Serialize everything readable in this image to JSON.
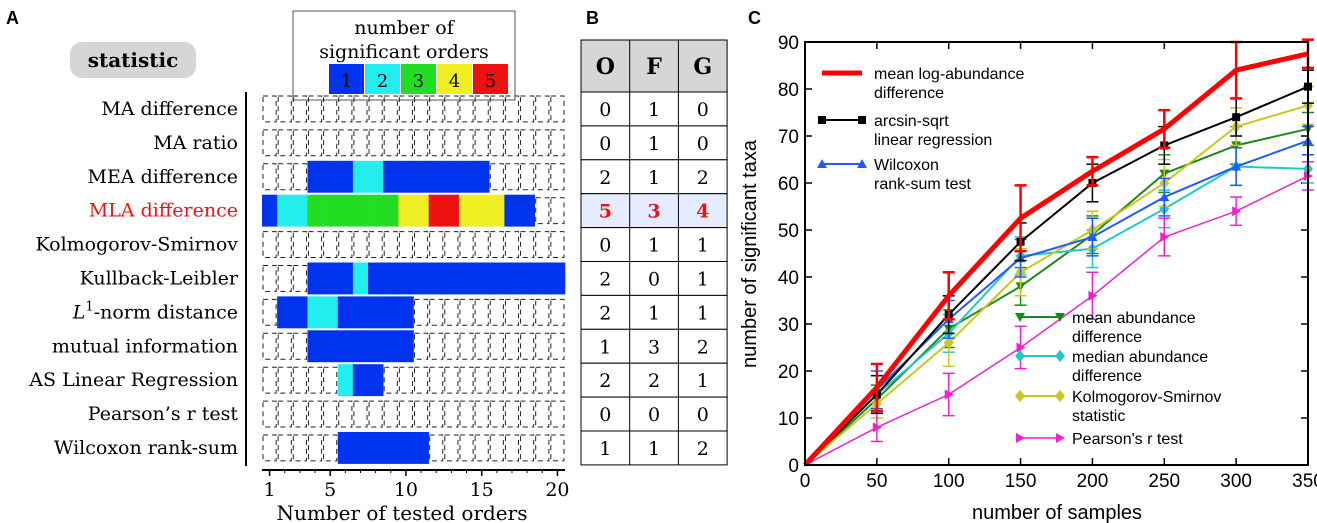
{
  "panel_labels": {
    "a": "A",
    "b": "B",
    "c": "C"
  },
  "colors": {
    "level1": "#0033ee",
    "level2": "#22eeee",
    "level3": "#22dd22",
    "level4": "#eeee22",
    "level5": "#ee1111",
    "highlight_text": "#ee1111",
    "highlight_row": "#e6ecff",
    "mla": "#ff0000",
    "ascsin": "#000000",
    "wilcoxon": "#1f5cff",
    "mean_abund": "#1a8a1a",
    "median_abund": "#22c8c8",
    "ks": "#c8c820",
    "pearson": "#ee22cc"
  },
  "panel_a": {
    "statistic_label": "statistic",
    "legend_title_1": "number of",
    "legend_title_2": "significant orders",
    "legend_levels": [
      "1",
      "2",
      "3",
      "4",
      "5"
    ],
    "rows": [
      {
        "label": "MA difference",
        "cells": []
      },
      {
        "label": "MA ratio",
        "cells": []
      },
      {
        "label": "MEA difference",
        "cells": [
          0,
          0,
          0,
          1,
          1,
          1,
          2,
          2,
          1,
          1,
          1,
          1,
          1,
          1,
          1,
          0,
          0,
          0,
          0,
          0
        ]
      },
      {
        "label": "MLA difference",
        "highlight": true,
        "cells": [
          1,
          2,
          2,
          3,
          3,
          3,
          3,
          3,
          3,
          4,
          4,
          5,
          5,
          4,
          4,
          4,
          1,
          1,
          0,
          0
        ]
      },
      {
        "label": "Kolmogorov-Smirnov",
        "cells": []
      },
      {
        "label": "Kullback-Leibler",
        "cells": [
          0,
          0,
          0,
          1,
          1,
          1,
          2,
          1,
          1,
          1,
          1,
          1,
          1,
          1,
          1,
          1,
          1,
          1,
          1,
          1
        ]
      },
      {
        "label_prefix": "L",
        "label_sup": "1",
        "label": "-norm distance",
        "cells": [
          0,
          1,
          1,
          2,
          2,
          1,
          1,
          1,
          1,
          1,
          0,
          0,
          0,
          0,
          0,
          0,
          0,
          0,
          0,
          0
        ]
      },
      {
        "label": "mutual information",
        "cells": [
          0,
          0,
          0,
          1,
          1,
          1,
          1,
          1,
          1,
          1,
          0,
          0,
          0,
          0,
          0,
          0,
          0,
          0,
          0,
          0
        ]
      },
      {
        "label": "AS Linear Regression",
        "cells": [
          0,
          0,
          0,
          0,
          0,
          2,
          1,
          1,
          0,
          0,
          0,
          0,
          0,
          0,
          0,
          0,
          0,
          0,
          0,
          0
        ]
      },
      {
        "label": "Pearson’s r test",
        "cells": []
      },
      {
        "label": "Wilcoxon rank-sum",
        "cells": [
          0,
          0,
          0,
          0,
          0,
          1,
          1,
          1,
          1,
          1,
          1,
          0,
          0,
          0,
          0,
          0,
          0,
          0,
          0,
          0
        ]
      }
    ],
    "x_axis_label": "Number of tested orders",
    "x_ticks": [
      "1",
      "5",
      "10",
      "15",
      "20"
    ],
    "x_tick_values": [
      1,
      5,
      10,
      15,
      20
    ],
    "n_orders": 20
  },
  "panel_b": {
    "headers": [
      "O",
      "F",
      "G"
    ],
    "rows": [
      [
        "0",
        "1",
        "0"
      ],
      [
        "0",
        "1",
        "0"
      ],
      [
        "2",
        "1",
        "2"
      ],
      [
        "5",
        "3",
        "4"
      ],
      [
        "0",
        "1",
        "1"
      ],
      [
        "2",
        "0",
        "1"
      ],
      [
        "2",
        "1",
        "1"
      ],
      [
        "1",
        "3",
        "2"
      ],
      [
        "2",
        "2",
        "1"
      ],
      [
        "0",
        "0",
        "0"
      ],
      [
        "1",
        "1",
        "2"
      ]
    ],
    "highlight_row": 3
  },
  "chart_data": {
    "type": "line",
    "xlabel": "number of samples",
    "ylabel": "number of significant taxa",
    "xlim": [
      0,
      350
    ],
    "ylim": [
      0,
      90
    ],
    "x_ticks": [
      0,
      50,
      100,
      150,
      200,
      250,
      300,
      350
    ],
    "y_ticks": [
      0,
      10,
      20,
      30,
      40,
      50,
      60,
      70,
      80,
      90
    ],
    "x": [
      0,
      50,
      100,
      150,
      200,
      250,
      300,
      350
    ],
    "series": [
      {
        "key": "mean_abund",
        "name_lines": [
          "mean abundance",
          "difference"
        ],
        "marker": "tri-down",
        "width": 2,
        "values": [
          0,
          14,
          29,
          38,
          49,
          62,
          68,
          71.5
        ],
        "err": [
          0,
          3,
          4,
          4,
          4,
          4,
          4,
          3.5
        ]
      },
      {
        "key": "median_abund",
        "name_lines": [
          "median abundance",
          "difference"
        ],
        "marker": "diamond",
        "width": 2,
        "values": [
          0,
          15,
          28,
          44.5,
          46,
          54.5,
          63.5,
          63
        ],
        "err": [
          0,
          4,
          4,
          4,
          4,
          4,
          4,
          3
        ]
      },
      {
        "key": "ks",
        "name_lines": [
          "Kolmogorov-Smirnov",
          "statistic"
        ],
        "marker": "diamond",
        "width": 2,
        "values": [
          0,
          13,
          26,
          41,
          50,
          60,
          72,
          76.5
        ],
        "err": [
          0,
          3,
          5,
          5,
          4,
          5,
          4,
          4
        ]
      },
      {
        "key": "pearson",
        "name_lines": [
          "Pearson's r test"
        ],
        "marker": "tri-right",
        "width": 1.5,
        "values": [
          0,
          8,
          15,
          25,
          36,
          48.5,
          54,
          61.5
        ],
        "err": [
          0,
          3,
          4.5,
          4.5,
          5,
          4,
          3,
          3
        ]
      },
      {
        "key": "wilcoxon",
        "name_lines": [
          "Wilcoxon",
          "rank-sum test"
        ],
        "marker": "tri-up",
        "width": 2,
        "values": [
          0,
          16,
          31,
          44,
          48.5,
          57,
          63.5,
          69
        ],
        "err": [
          0,
          4,
          4,
          4,
          4,
          4,
          4,
          3
        ]
      },
      {
        "key": "ascsin",
        "name_lines": [
          "arcsin-sqrt",
          "linear regression"
        ],
        "marker": "square",
        "width": 2,
        "values": [
          0,
          15,
          32,
          47.5,
          60,
          68,
          74,
          80.5
        ],
        "err": [
          0,
          4,
          4,
          4,
          4,
          4,
          4,
          3.5
        ]
      },
      {
        "key": "mla",
        "name_lines": [
          "mean log-abundance",
          "difference"
        ],
        "marker": "none",
        "width": 5,
        "values": [
          0,
          16.5,
          36,
          52.5,
          62.5,
          71.5,
          84,
          87.5
        ],
        "err": [
          0,
          5,
          5,
          7,
          3,
          4,
          6,
          3
        ]
      }
    ],
    "legend_top": [
      "mla",
      "ascsin",
      "wilcoxon"
    ],
    "legend_bottom": [
      "mean_abund",
      "median_abund",
      "ks",
      "pearson"
    ]
  }
}
